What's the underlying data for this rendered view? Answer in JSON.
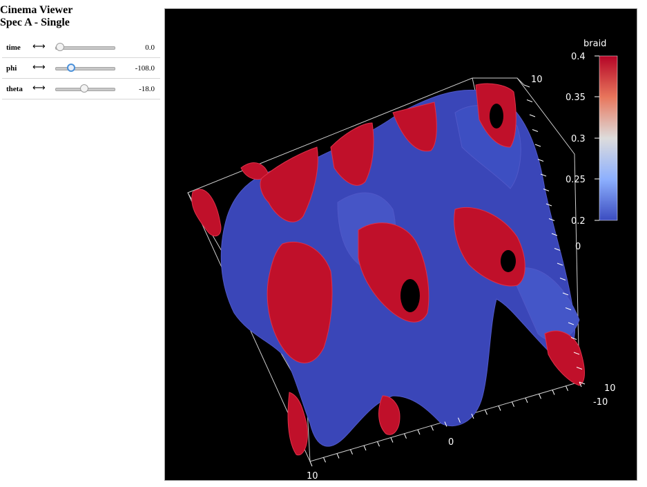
{
  "app": {
    "title_line1": "Cinema Viewer",
    "title_line2": "Spec A - Single"
  },
  "controls": [
    {
      "label": "time",
      "arrow": "⟷",
      "value": "0.0",
      "fraction": 0.0
    },
    {
      "label": "phi",
      "arrow": "⟷",
      "value": "-108.0",
      "fraction": 0.2
    },
    {
      "label": "theta",
      "arrow": "⟷",
      "value": "-18.0",
      "fraction": 0.45
    }
  ],
  "viewer": {
    "colorbar": {
      "title": "braid",
      "ticks": [
        "0.4",
        "0.35",
        "0.3",
        "0.25",
        "0.2"
      ]
    },
    "axis_labels": {
      "top_right": "10",
      "right_mid": "0",
      "right_bottom_a": "10",
      "right_bottom_b": "-10",
      "bottom_mid": "0",
      "bottom_left": "10"
    },
    "colors": {
      "background": "#000000",
      "surface_red": "#c0102a",
      "surface_blue": "#3a46b8",
      "box_lines": "#cfcfcf"
    }
  }
}
